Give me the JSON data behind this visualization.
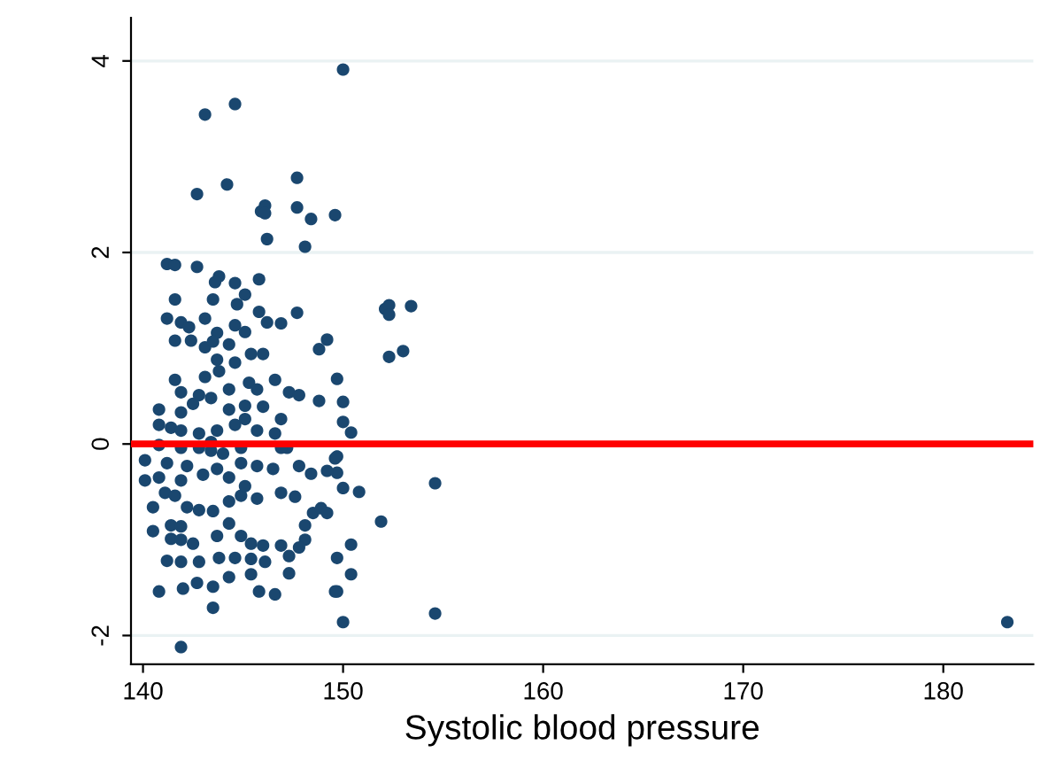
{
  "chart_data": {
    "type": "scatter",
    "xlabel": "Systolic blood pressure",
    "xlim": [
      139.4,
      184.5
    ],
    "ylim": [
      -2.3,
      4.45
    ],
    "xticks": [
      140,
      150,
      160,
      170,
      180
    ],
    "yticks": [
      {
        "value": -2,
        "label": "-2"
      },
      0,
      2,
      4
    ],
    "grid": "y",
    "legend": false,
    "marker": "circle",
    "ref_lines": [
      {
        "axis": "y",
        "value": 0,
        "color": "#ff0000"
      }
    ],
    "series": [
      {
        "color": "#1a476f",
        "x": [
          150.0,
          144.6,
          143.1,
          147.7,
          144.2,
          142.7,
          145.9,
          146.1,
          146.1,
          147.7,
          148.4,
          149.6,
          146.2,
          148.1,
          141.2,
          141.6,
          142.7,
          143.8,
          143.6,
          144.6,
          145.8,
          141.6,
          143.5,
          145.1,
          144.7,
          141.2,
          141.9,
          142.3,
          143.1,
          145.8,
          146.2,
          146.9,
          147.7,
          143.7,
          144.6,
          145.1,
          141.6,
          142.4,
          149.2,
          148.8,
          152.1,
          152.3,
          152.3,
          153.4,
          152.3,
          153.0,
          149.7,
          150.0,
          150.0,
          150.4,
          149.7,
          149.7,
          150.0,
          150.8,
          154.6,
          151.9,
          150.4,
          149.7,
          150.4,
          149.7,
          150.0,
          154.6,
          183.2,
          141.9,
          143.5,
          140.8,
          142.0,
          142.7,
          143.5,
          144.3,
          145.8,
          146.6,
          149.6,
          141.2,
          141.9,
          142.8,
          143.8,
          144.6,
          145.4,
          145.4,
          146.1,
          147.3,
          147.3,
          145.4,
          140.5,
          141.4,
          141.9,
          142.5,
          141.4,
          141.9,
          143.7,
          144.3,
          144.9,
          146.0,
          146.9,
          148.1,
          148.1,
          147.8,
          148.5,
          148.9,
          149.2,
          140.5,
          141.1,
          141.6,
          142.2,
          142.8,
          143.5,
          144.3,
          144.9,
          145.1,
          145.7,
          146.9,
          147.6,
          148.4,
          149.2,
          149.6,
          140.1,
          140.1,
          140.8,
          141.2,
          141.9,
          142.2,
          143.0,
          143.7,
          144.3,
          144.9,
          145.7,
          146.5,
          147.2,
          147.8,
          140.8,
          141.9,
          142.8,
          143.4,
          144.0,
          145.7,
          146.6,
          140.8,
          141.4,
          141.9,
          142.8,
          143.7,
          144.6,
          145.1,
          140.8,
          141.9,
          142.5,
          143.4,
          144.3,
          145.1,
          146.0,
          146.9,
          147.3,
          147.8,
          148.8,
          141.6,
          141.9,
          142.8,
          143.1,
          143.8,
          144.3,
          145.3,
          145.7,
          146.6,
          143.7,
          144.6,
          145.4,
          143.1,
          143.5,
          144.3,
          146.0,
          146.9,
          143.4,
          144.9
        ],
        "values": [
          3.91,
          3.55,
          3.44,
          2.78,
          2.71,
          2.61,
          2.43,
          2.49,
          2.41,
          2.47,
          2.35,
          2.39,
          2.14,
          2.06,
          1.88,
          1.87,
          1.85,
          1.75,
          1.69,
          1.68,
          1.72,
          1.51,
          1.51,
          1.56,
          1.46,
          1.31,
          1.27,
          1.22,
          1.31,
          1.38,
          1.27,
          1.26,
          1.37,
          1.16,
          1.24,
          1.17,
          1.08,
          1.08,
          1.09,
          0.99,
          1.41,
          1.45,
          1.35,
          1.44,
          0.91,
          0.97,
          0.68,
          0.44,
          0.23,
          0.12,
          -0.13,
          -0.3,
          -0.46,
          -0.5,
          -0.41,
          -0.81,
          -1.05,
          -1.19,
          -1.36,
          -1.54,
          -1.86,
          -1.77,
          -1.86,
          -2.12,
          -1.71,
          -1.54,
          -1.51,
          -1.45,
          -1.49,
          -1.39,
          -1.54,
          -1.57,
          -1.54,
          -1.22,
          -1.23,
          -1.23,
          -1.19,
          -1.19,
          -1.2,
          -1.36,
          -1.23,
          -1.35,
          -1.17,
          -1.04,
          -0.91,
          -0.99,
          -1.0,
          -1.04,
          -0.85,
          -0.86,
          -0.96,
          -0.83,
          -0.96,
          -1.06,
          -1.06,
          -0.85,
          -1.0,
          -1.08,
          -0.72,
          -0.67,
          -0.72,
          -0.66,
          -0.51,
          -0.54,
          -0.66,
          -0.69,
          -0.7,
          -0.6,
          -0.54,
          -0.44,
          -0.57,
          -0.51,
          -0.55,
          -0.31,
          -0.28,
          -0.15,
          -0.38,
          -0.17,
          -0.35,
          -0.2,
          -0.38,
          -0.23,
          -0.32,
          -0.26,
          -0.35,
          -0.2,
          -0.23,
          -0.26,
          -0.04,
          -0.23,
          -0.01,
          -0.04,
          -0.04,
          -0.07,
          -0.1,
          0.14,
          0.11,
          0.2,
          0.17,
          0.14,
          0.11,
          0.14,
          0.2,
          0.26,
          0.36,
          0.33,
          0.42,
          0.48,
          0.36,
          0.4,
          0.39,
          0.26,
          0.54,
          0.51,
          0.45,
          0.67,
          0.54,
          0.51,
          0.7,
          0.76,
          0.57,
          0.64,
          0.57,
          0.67,
          0.88,
          0.85,
          0.94,
          1.01,
          1.07,
          1.04,
          0.94,
          -0.04,
          0.02,
          -0.04
        ]
      }
    ]
  }
}
